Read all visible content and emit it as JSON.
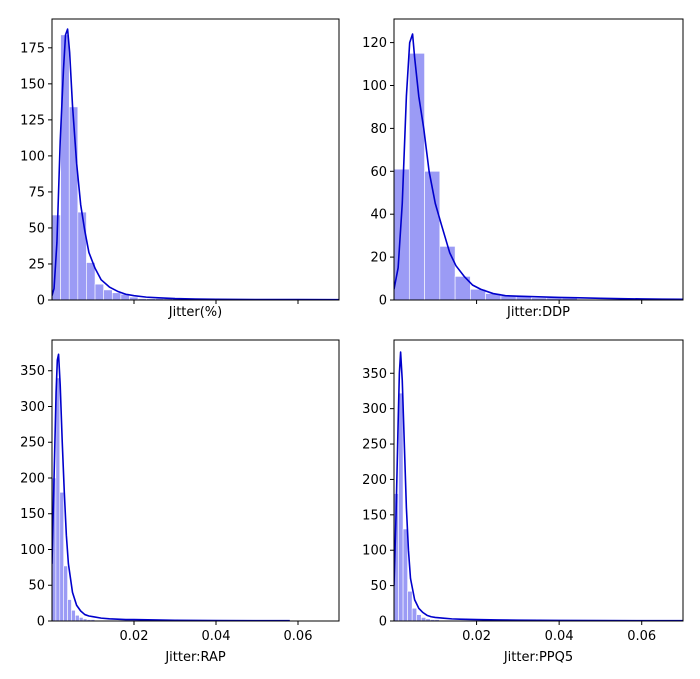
{
  "colors": {
    "bar_fill": "#9b9bf5",
    "kde_line": "#0000cc",
    "axes": "#000000",
    "background": "#ffffff"
  },
  "chart_data": [
    {
      "type": "histogram",
      "xlabel": "Jitter(%)",
      "xlim": [
        0.0,
        0.07
      ],
      "ylim": [
        0,
        195
      ],
      "x_ticks": [
        0.02,
        0.04,
        0.06
      ],
      "x_tick_labels_visible": false,
      "y_ticks": [
        0,
        25,
        50,
        75,
        100,
        125,
        150,
        175
      ],
      "bin_width": 0.0021,
      "bins": [
        {
          "x0": 0.0,
          "count": 59
        },
        {
          "x0": 0.0021,
          "count": 184
        },
        {
          "x0": 0.0042,
          "count": 134
        },
        {
          "x0": 0.0063,
          "count": 61
        },
        {
          "x0": 0.0084,
          "count": 26
        },
        {
          "x0": 0.0105,
          "count": 11
        },
        {
          "x0": 0.0126,
          "count": 7
        },
        {
          "x0": 0.0147,
          "count": 5
        },
        {
          "x0": 0.0168,
          "count": 4
        },
        {
          "x0": 0.0189,
          "count": 2
        },
        {
          "x0": 0.021,
          "count": 1
        },
        {
          "x0": 0.0231,
          "count": 1
        },
        {
          "x0": 0.0252,
          "count": 1
        },
        {
          "x0": 0.0273,
          "count": 1
        },
        {
          "x0": 0.0294,
          "count": 1
        },
        {
          "x0": 0.0315,
          "count": 1
        }
      ],
      "kde": [
        [
          0.0,
          3
        ],
        [
          0.0005,
          8
        ],
        [
          0.0012,
          40
        ],
        [
          0.002,
          110
        ],
        [
          0.0028,
          160
        ],
        [
          0.0033,
          184
        ],
        [
          0.0038,
          188
        ],
        [
          0.0043,
          172
        ],
        [
          0.005,
          135
        ],
        [
          0.006,
          95
        ],
        [
          0.007,
          66
        ],
        [
          0.008,
          48
        ],
        [
          0.009,
          33
        ],
        [
          0.0105,
          22
        ],
        [
          0.012,
          14
        ],
        [
          0.014,
          9
        ],
        [
          0.016,
          6
        ],
        [
          0.018,
          4
        ],
        [
          0.02,
          3
        ],
        [
          0.023,
          2
        ],
        [
          0.026,
          1.5
        ],
        [
          0.03,
          1
        ],
        [
          0.035,
          0.7
        ],
        [
          0.04,
          0.5
        ],
        [
          0.05,
          0.3
        ],
        [
          0.06,
          0.3
        ],
        [
          0.07,
          0.2
        ]
      ]
    },
    {
      "type": "histogram",
      "xlabel": "Jitter:DDP",
      "xlim": [
        0.0,
        0.07
      ],
      "ylim": [
        0,
        131
      ],
      "x_ticks": [
        0.02,
        0.04,
        0.06
      ],
      "x_tick_labels_visible": false,
      "y_ticks": [
        0,
        20,
        40,
        60,
        80,
        100,
        120
      ],
      "bin_width": 0.0037,
      "bins": [
        {
          "x0": 0.0,
          "count": 61
        },
        {
          "x0": 0.0037,
          "count": 115
        },
        {
          "x0": 0.0074,
          "count": 60
        },
        {
          "x0": 0.0111,
          "count": 25
        },
        {
          "x0": 0.0148,
          "count": 11
        },
        {
          "x0": 0.0185,
          "count": 5
        },
        {
          "x0": 0.0222,
          "count": 3
        },
        {
          "x0": 0.0259,
          "count": 2
        },
        {
          "x0": 0.0296,
          "count": 2
        },
        {
          "x0": 0.0333,
          "count": 1
        },
        {
          "x0": 0.037,
          "count": 1
        },
        {
          "x0": 0.0407,
          "count": 1
        }
      ],
      "kde": [
        [
          0.0,
          5
        ],
        [
          0.001,
          15
        ],
        [
          0.002,
          45
        ],
        [
          0.003,
          95
        ],
        [
          0.0038,
          120
        ],
        [
          0.0045,
          124
        ],
        [
          0.005,
          113
        ],
        [
          0.006,
          95
        ],
        [
          0.0072,
          80
        ],
        [
          0.0085,
          60
        ],
        [
          0.01,
          45
        ],
        [
          0.0115,
          35
        ],
        [
          0.0135,
          22
        ],
        [
          0.015,
          16
        ],
        [
          0.017,
          11
        ],
        [
          0.019,
          7
        ],
        [
          0.021,
          5
        ],
        [
          0.024,
          3
        ],
        [
          0.027,
          2
        ],
        [
          0.03,
          1.8
        ],
        [
          0.035,
          1.5
        ],
        [
          0.04,
          1.2
        ],
        [
          0.045,
          1
        ],
        [
          0.05,
          0.8
        ],
        [
          0.055,
          0.6
        ],
        [
          0.06,
          0.5
        ],
        [
          0.065,
          0.4
        ],
        [
          0.07,
          0.3
        ]
      ]
    },
    {
      "type": "histogram",
      "xlabel": "Jitter:RAP",
      "xlim": [
        0.0,
        0.07
      ],
      "ylim": [
        0,
        393
      ],
      "x_ticks": [
        0.02,
        0.04,
        0.06
      ],
      "x_tick_labels": [
        "0.02",
        "0.04",
        "0.06"
      ],
      "x_tick_labels_visible": true,
      "y_ticks": [
        0,
        50,
        100,
        150,
        200,
        250,
        300,
        350
      ],
      "bin_width": 0.00095,
      "bins": [
        {
          "x0": 0.0,
          "count": 200
        },
        {
          "x0": 0.00095,
          "count": 340
        },
        {
          "x0": 0.0019,
          "count": 180
        },
        {
          "x0": 0.00285,
          "count": 77
        },
        {
          "x0": 0.0038,
          "count": 30
        },
        {
          "x0": 0.00475,
          "count": 15
        },
        {
          "x0": 0.0057,
          "count": 8
        },
        {
          "x0": 0.00665,
          "count": 5
        },
        {
          "x0": 0.0076,
          "count": 3
        },
        {
          "x0": 0.00855,
          "count": 2
        },
        {
          "x0": 0.0095,
          "count": 2
        },
        {
          "x0": 0.01045,
          "count": 1
        }
      ],
      "kde": [
        [
          0.0,
          80
        ],
        [
          0.0005,
          200
        ],
        [
          0.001,
          320
        ],
        [
          0.0013,
          365
        ],
        [
          0.0016,
          373
        ],
        [
          0.002,
          330
        ],
        [
          0.0025,
          250
        ],
        [
          0.003,
          180
        ],
        [
          0.0035,
          120
        ],
        [
          0.004,
          80
        ],
        [
          0.005,
          40
        ],
        [
          0.006,
          22
        ],
        [
          0.007,
          14
        ],
        [
          0.008,
          9
        ],
        [
          0.009,
          7
        ],
        [
          0.01,
          6
        ],
        [
          0.012,
          4
        ],
        [
          0.014,
          3
        ],
        [
          0.016,
          2.5
        ],
        [
          0.018,
          2
        ],
        [
          0.02,
          2
        ],
        [
          0.025,
          1.5
        ],
        [
          0.03,
          1
        ],
        [
          0.035,
          0.8
        ],
        [
          0.04,
          0.6
        ],
        [
          0.05,
          0.5
        ],
        [
          0.058,
          0.4
        ]
      ]
    },
    {
      "type": "histogram",
      "xlabel": "Jitter:PPQ5",
      "xlim": [
        0.0,
        0.07
      ],
      "ylim": [
        0,
        397
      ],
      "x_ticks": [
        0.02,
        0.04,
        0.06
      ],
      "x_tick_labels": [
        "0.02",
        "0.04",
        "0.06"
      ],
      "x_tick_labels_visible": true,
      "y_ticks": [
        0,
        50,
        100,
        150,
        200,
        250,
        300,
        350
      ],
      "bin_width": 0.0011,
      "bins": [
        {
          "x0": 0.0,
          "count": 180
        },
        {
          "x0": 0.0011,
          "count": 322
        },
        {
          "x0": 0.0022,
          "count": 130
        },
        {
          "x0": 0.0033,
          "count": 42
        },
        {
          "x0": 0.0044,
          "count": 18
        },
        {
          "x0": 0.0055,
          "count": 9
        },
        {
          "x0": 0.0066,
          "count": 5
        },
        {
          "x0": 0.0077,
          "count": 3
        },
        {
          "x0": 0.0088,
          "count": 2
        },
        {
          "x0": 0.0099,
          "count": 2
        },
        {
          "x0": 0.011,
          "count": 1
        }
      ],
      "kde": [
        [
          0.0,
          50
        ],
        [
          0.0005,
          150
        ],
        [
          0.001,
          280
        ],
        [
          0.0013,
          350
        ],
        [
          0.0016,
          380
        ],
        [
          0.002,
          340
        ],
        [
          0.0025,
          250
        ],
        [
          0.003,
          160
        ],
        [
          0.0035,
          100
        ],
        [
          0.004,
          60
        ],
        [
          0.005,
          30
        ],
        [
          0.006,
          18
        ],
        [
          0.007,
          12
        ],
        [
          0.008,
          8
        ],
        [
          0.009,
          6
        ],
        [
          0.01,
          5
        ],
        [
          0.012,
          4
        ],
        [
          0.014,
          3
        ],
        [
          0.016,
          2.5
        ],
        [
          0.02,
          2
        ],
        [
          0.025,
          1.5
        ],
        [
          0.03,
          1.2
        ],
        [
          0.035,
          1
        ],
        [
          0.04,
          0.8
        ],
        [
          0.05,
          0.6
        ],
        [
          0.06,
          0.5
        ],
        [
          0.07,
          0.4
        ]
      ]
    }
  ]
}
